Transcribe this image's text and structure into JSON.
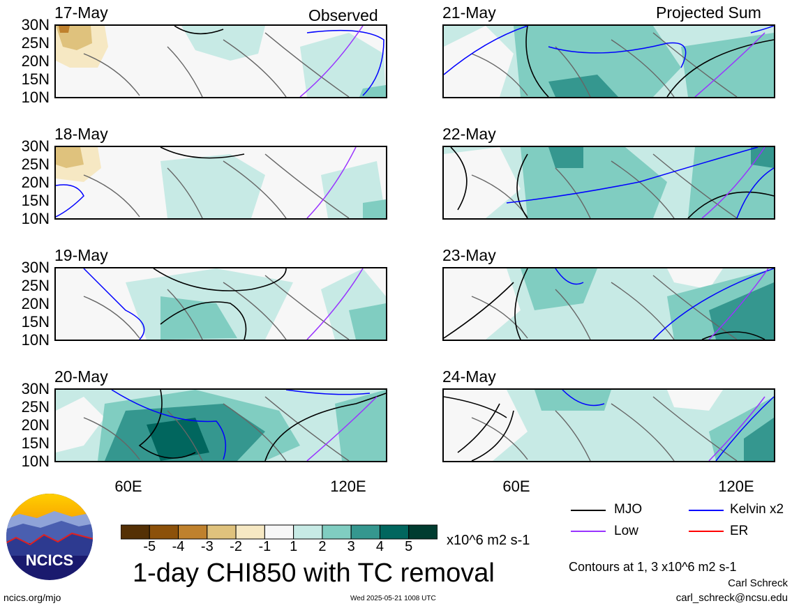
{
  "panels": [
    {
      "date": "17-May",
      "tag": "Observed"
    },
    {
      "date": "18-May",
      "tag": ""
    },
    {
      "date": "19-May",
      "tag": ""
    },
    {
      "date": "20-May",
      "tag": ""
    },
    {
      "date": "21-May",
      "tag": "Projected Sum"
    },
    {
      "date": "22-May",
      "tag": ""
    },
    {
      "date": "23-May",
      "tag": ""
    },
    {
      "date": "24-May",
      "tag": ""
    }
  ],
  "lat_labels": [
    "30N",
    "25N",
    "20N",
    "15N",
    "10N"
  ],
  "lon_labels": [
    "60E",
    "120E"
  ],
  "colorbar": {
    "labels": [
      "-5",
      "-4",
      "-3",
      "-2",
      "-1",
      "1",
      "2",
      "3",
      "4",
      "5"
    ],
    "colors": [
      "#543005",
      "#8c510a",
      "#bf812d",
      "#dfc27d",
      "#f6e8c3",
      "#f7f7f7",
      "#c7eae5",
      "#80cdc1",
      "#35978f",
      "#01665e",
      "#003c30"
    ],
    "units": "x10^6 m2 s-1"
  },
  "title": "1-day CHI850 with TC removal",
  "legend": [
    {
      "label": "MJO",
      "color": "#000000"
    },
    {
      "label": "Kelvin x2",
      "color": "#0000ff"
    },
    {
      "label": "Low",
      "color": "#9933ff"
    },
    {
      "label": "ER",
      "color": "#ff0000"
    }
  ],
  "contour_note": "Contours at 1, 3 x10^6 m2 s-1",
  "author": "Carl Schreck",
  "email": "carl_schreck@ncsu.edu",
  "site": "ncics.org/mjo",
  "timestamp": "Wed 2025-05-21 1008 UTC",
  "logo_text": "NCICS"
}
